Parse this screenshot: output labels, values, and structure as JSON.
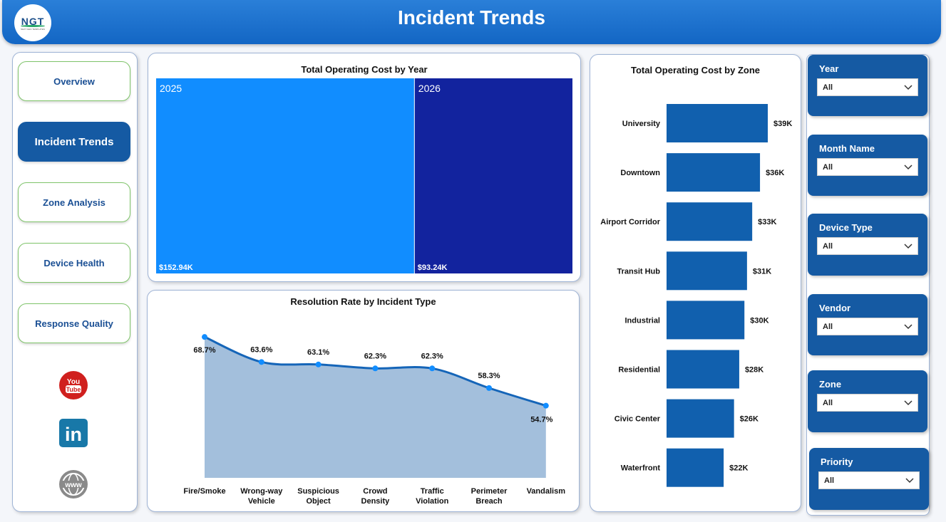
{
  "header": {
    "title": "Incident Trends",
    "logo_text": "NGT",
    "logo_subtitle": "NEXT GEN TEMPLATES"
  },
  "nav": {
    "items": [
      {
        "label": "Overview",
        "active": false
      },
      {
        "label": "Incident Trends",
        "active": true
      },
      {
        "label": "Zone Analysis",
        "active": false
      },
      {
        "label": "Device Health",
        "active": false
      },
      {
        "label": "Response Quality",
        "active": false
      }
    ],
    "social": [
      {
        "icon": "youtube-icon",
        "text": "You\nTube",
        "color": "#d0201e"
      },
      {
        "icon": "linkedin-icon",
        "text": "in",
        "color": "#1878a8"
      },
      {
        "icon": "globe-icon",
        "text": "www",
        "color": "#8a8a8a"
      }
    ]
  },
  "treemap": {
    "title": "Total Operating Cost by Year",
    "chart_data": {
      "type": "treemap",
      "categories": [
        "2025",
        "2026"
      ],
      "values": [
        152.94,
        93.24
      ],
      "labels": [
        "$152.94K",
        "$93.24K"
      ],
      "colors": [
        "#118dff",
        "#12239e"
      ]
    }
  },
  "line": {
    "title": "Resolution Rate by Incident Type",
    "chart_data": {
      "type": "area",
      "categories": [
        "Fire/Smoke",
        "Wrong-way Vehicle",
        "Suspicious Object",
        "Crowd Density",
        "Traffic Violation",
        "Perimeter Breach",
        "Vandalism"
      ],
      "category_lines": [
        [
          "Fire/Smoke"
        ],
        [
          "Wrong-way",
          "Vehicle"
        ],
        [
          "Suspicious",
          "Object"
        ],
        [
          "Crowd",
          "Density"
        ],
        [
          "Traffic",
          "Violation"
        ],
        [
          "Perimeter",
          "Breach"
        ],
        [
          "Vandalism"
        ]
      ],
      "values": [
        68.7,
        63.6,
        63.1,
        62.3,
        62.3,
        58.3,
        54.7
      ],
      "labels": [
        "68.7%",
        "63.6%",
        "63.1%",
        "62.3%",
        "62.3%",
        "58.3%",
        "54.7%"
      ],
      "ylim": [
        40,
        70
      ],
      "line_color": "#1565b8",
      "fill_color": "#a3bfdc",
      "marker_color": "#118dff"
    }
  },
  "bars": {
    "title": "Total Operating Cost by Zone",
    "chart_data": {
      "type": "bar",
      "orientation": "horizontal",
      "categories": [
        "University",
        "Downtown",
        "Airport Corridor",
        "Transit Hub",
        "Industrial",
        "Residential",
        "Civic Center",
        "Waterfront"
      ],
      "values": [
        39,
        36,
        33,
        31,
        30,
        28,
        26,
        22
      ],
      "labels": [
        "$39K",
        "$36K",
        "$33K",
        "$31K",
        "$30K",
        "$28K",
        "$26K",
        "$22K"
      ],
      "color": "#1160ae",
      "xlim": [
        0,
        39
      ]
    }
  },
  "slicers": [
    {
      "label": "Year",
      "value": "All"
    },
    {
      "label": "Month Name",
      "value": "All"
    },
    {
      "label": "Device Type",
      "value": "All"
    },
    {
      "label": "Vendor",
      "value": "All"
    },
    {
      "label": "Zone",
      "value": "All"
    },
    {
      "label": "Priority",
      "value": "All"
    }
  ]
}
